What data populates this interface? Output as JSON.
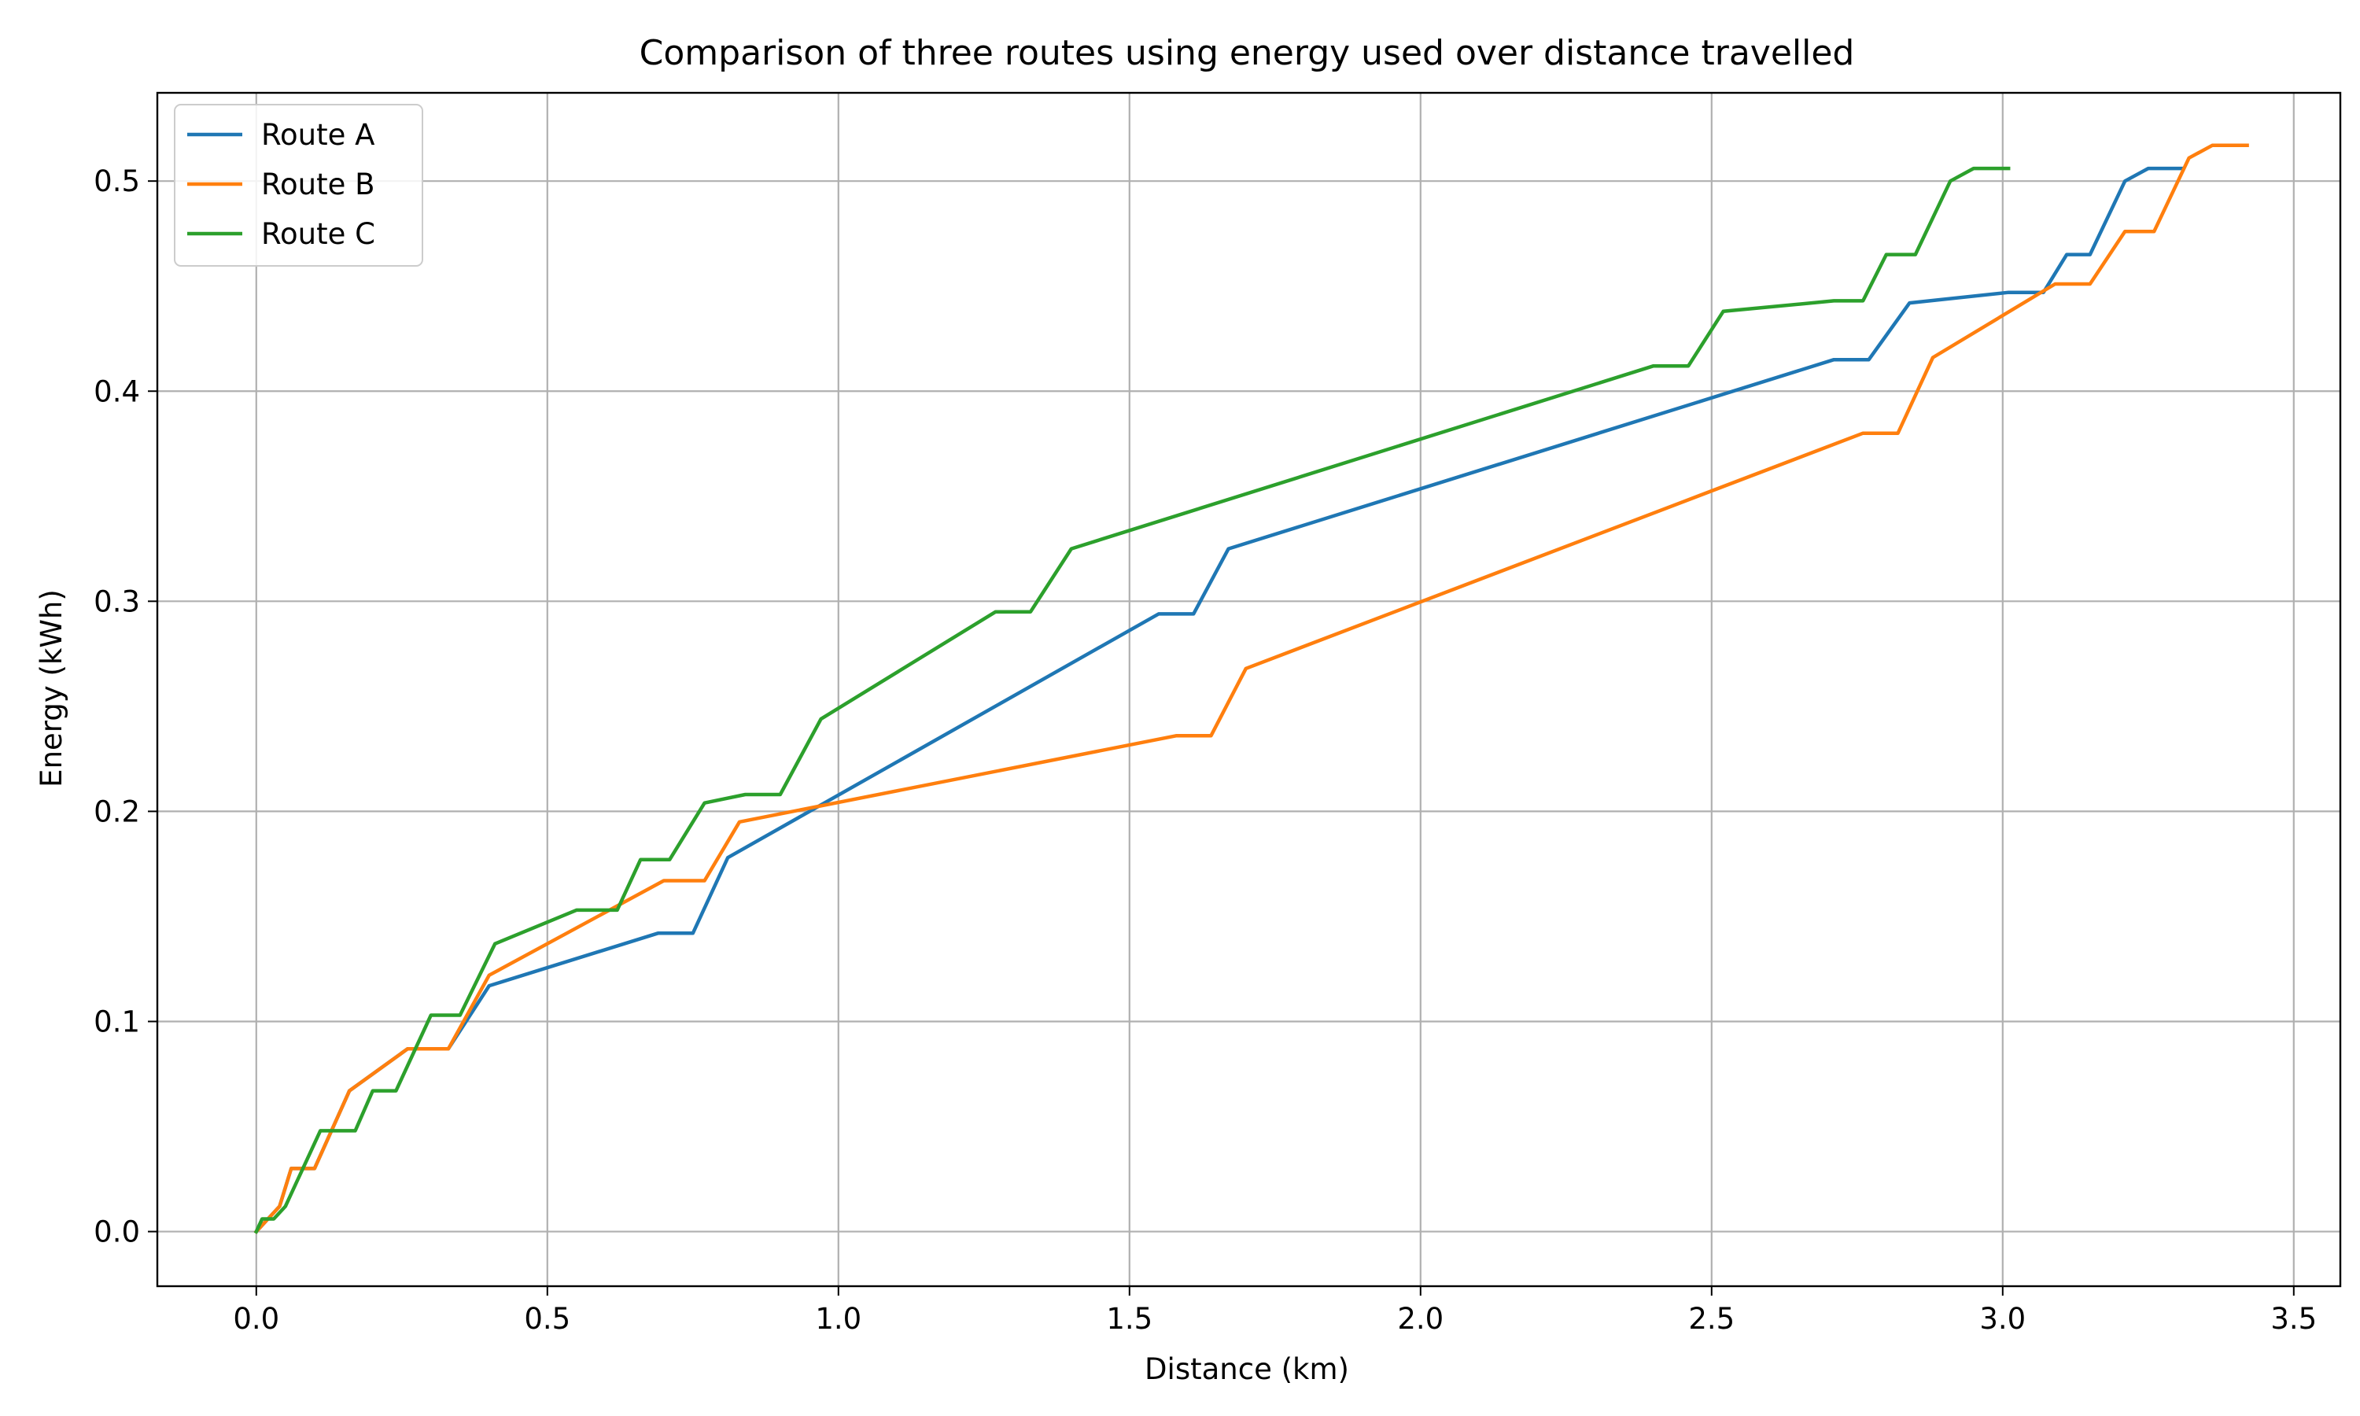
{
  "chart_data": {
    "type": "line",
    "title": "Comparison of three routes using energy used over distance travelled",
    "xlabel": "Distance (km)",
    "ylabel": "Energy (kWh)",
    "xlim": [
      -0.17,
      3.58
    ],
    "ylim": [
      -0.026,
      0.542
    ],
    "xticks": [
      0.0,
      0.5,
      1.0,
      1.5,
      2.0,
      2.5,
      3.0,
      3.5
    ],
    "xtick_labels": [
      "0.0",
      "0.5",
      "1.0",
      "1.5",
      "2.0",
      "2.5",
      "3.0",
      "3.5"
    ],
    "yticks": [
      0.0,
      0.1,
      0.2,
      0.3,
      0.4,
      0.5
    ],
    "ytick_labels": [
      "0.0",
      "0.1",
      "0.2",
      "0.3",
      "0.4",
      "0.5"
    ],
    "grid": true,
    "legend_position": "top-left",
    "series": [
      {
        "name": "Route A",
        "color": "#1f77b4",
        "x": [
          0.0,
          0.02,
          0.04,
          0.06,
          0.1,
          0.16,
          0.26,
          0.33,
          0.4,
          0.69,
          0.75,
          0.81,
          1.55,
          1.61,
          1.67,
          2.71,
          2.77,
          2.84,
          3.01,
          3.07,
          3.11,
          3.15,
          3.21,
          3.25,
          3.31
        ],
        "y": [
          0.0,
          0.006,
          0.012,
          0.03,
          0.03,
          0.067,
          0.087,
          0.087,
          0.117,
          0.142,
          0.142,
          0.178,
          0.294,
          0.294,
          0.325,
          0.415,
          0.415,
          0.442,
          0.447,
          0.447,
          0.465,
          0.465,
          0.5,
          0.506,
          0.506
        ]
      },
      {
        "name": "Route B",
        "color": "#ff7f0e",
        "x": [
          0.0,
          0.02,
          0.04,
          0.06,
          0.1,
          0.16,
          0.26,
          0.33,
          0.4,
          0.7,
          0.77,
          0.83,
          1.58,
          1.64,
          1.7,
          2.76,
          2.82,
          2.88,
          3.09,
          3.15,
          3.21,
          3.26,
          3.32,
          3.36,
          3.42
        ],
        "y": [
          0.0,
          0.006,
          0.012,
          0.03,
          0.03,
          0.067,
          0.087,
          0.087,
          0.122,
          0.167,
          0.167,
          0.195,
          0.236,
          0.236,
          0.268,
          0.38,
          0.38,
          0.416,
          0.451,
          0.451,
          0.476,
          0.476,
          0.511,
          0.517,
          0.517
        ]
      },
      {
        "name": "Route C",
        "color": "#2ca02c",
        "x": [
          0.0,
          0.01,
          0.03,
          0.05,
          0.11,
          0.17,
          0.2,
          0.24,
          0.3,
          0.35,
          0.41,
          0.55,
          0.62,
          0.66,
          0.71,
          0.77,
          0.84,
          0.9,
          0.97,
          1.27,
          1.33,
          1.4,
          2.4,
          2.46,
          2.52,
          2.71,
          2.76,
          2.8,
          2.85,
          2.91,
          2.95,
          3.01
        ],
        "y": [
          0.0,
          0.006,
          0.006,
          0.012,
          0.048,
          0.048,
          0.067,
          0.067,
          0.103,
          0.103,
          0.137,
          0.153,
          0.153,
          0.177,
          0.177,
          0.204,
          0.208,
          0.208,
          0.244,
          0.295,
          0.295,
          0.325,
          0.412,
          0.412,
          0.438,
          0.443,
          0.443,
          0.465,
          0.465,
          0.5,
          0.506,
          0.506
        ]
      }
    ]
  }
}
